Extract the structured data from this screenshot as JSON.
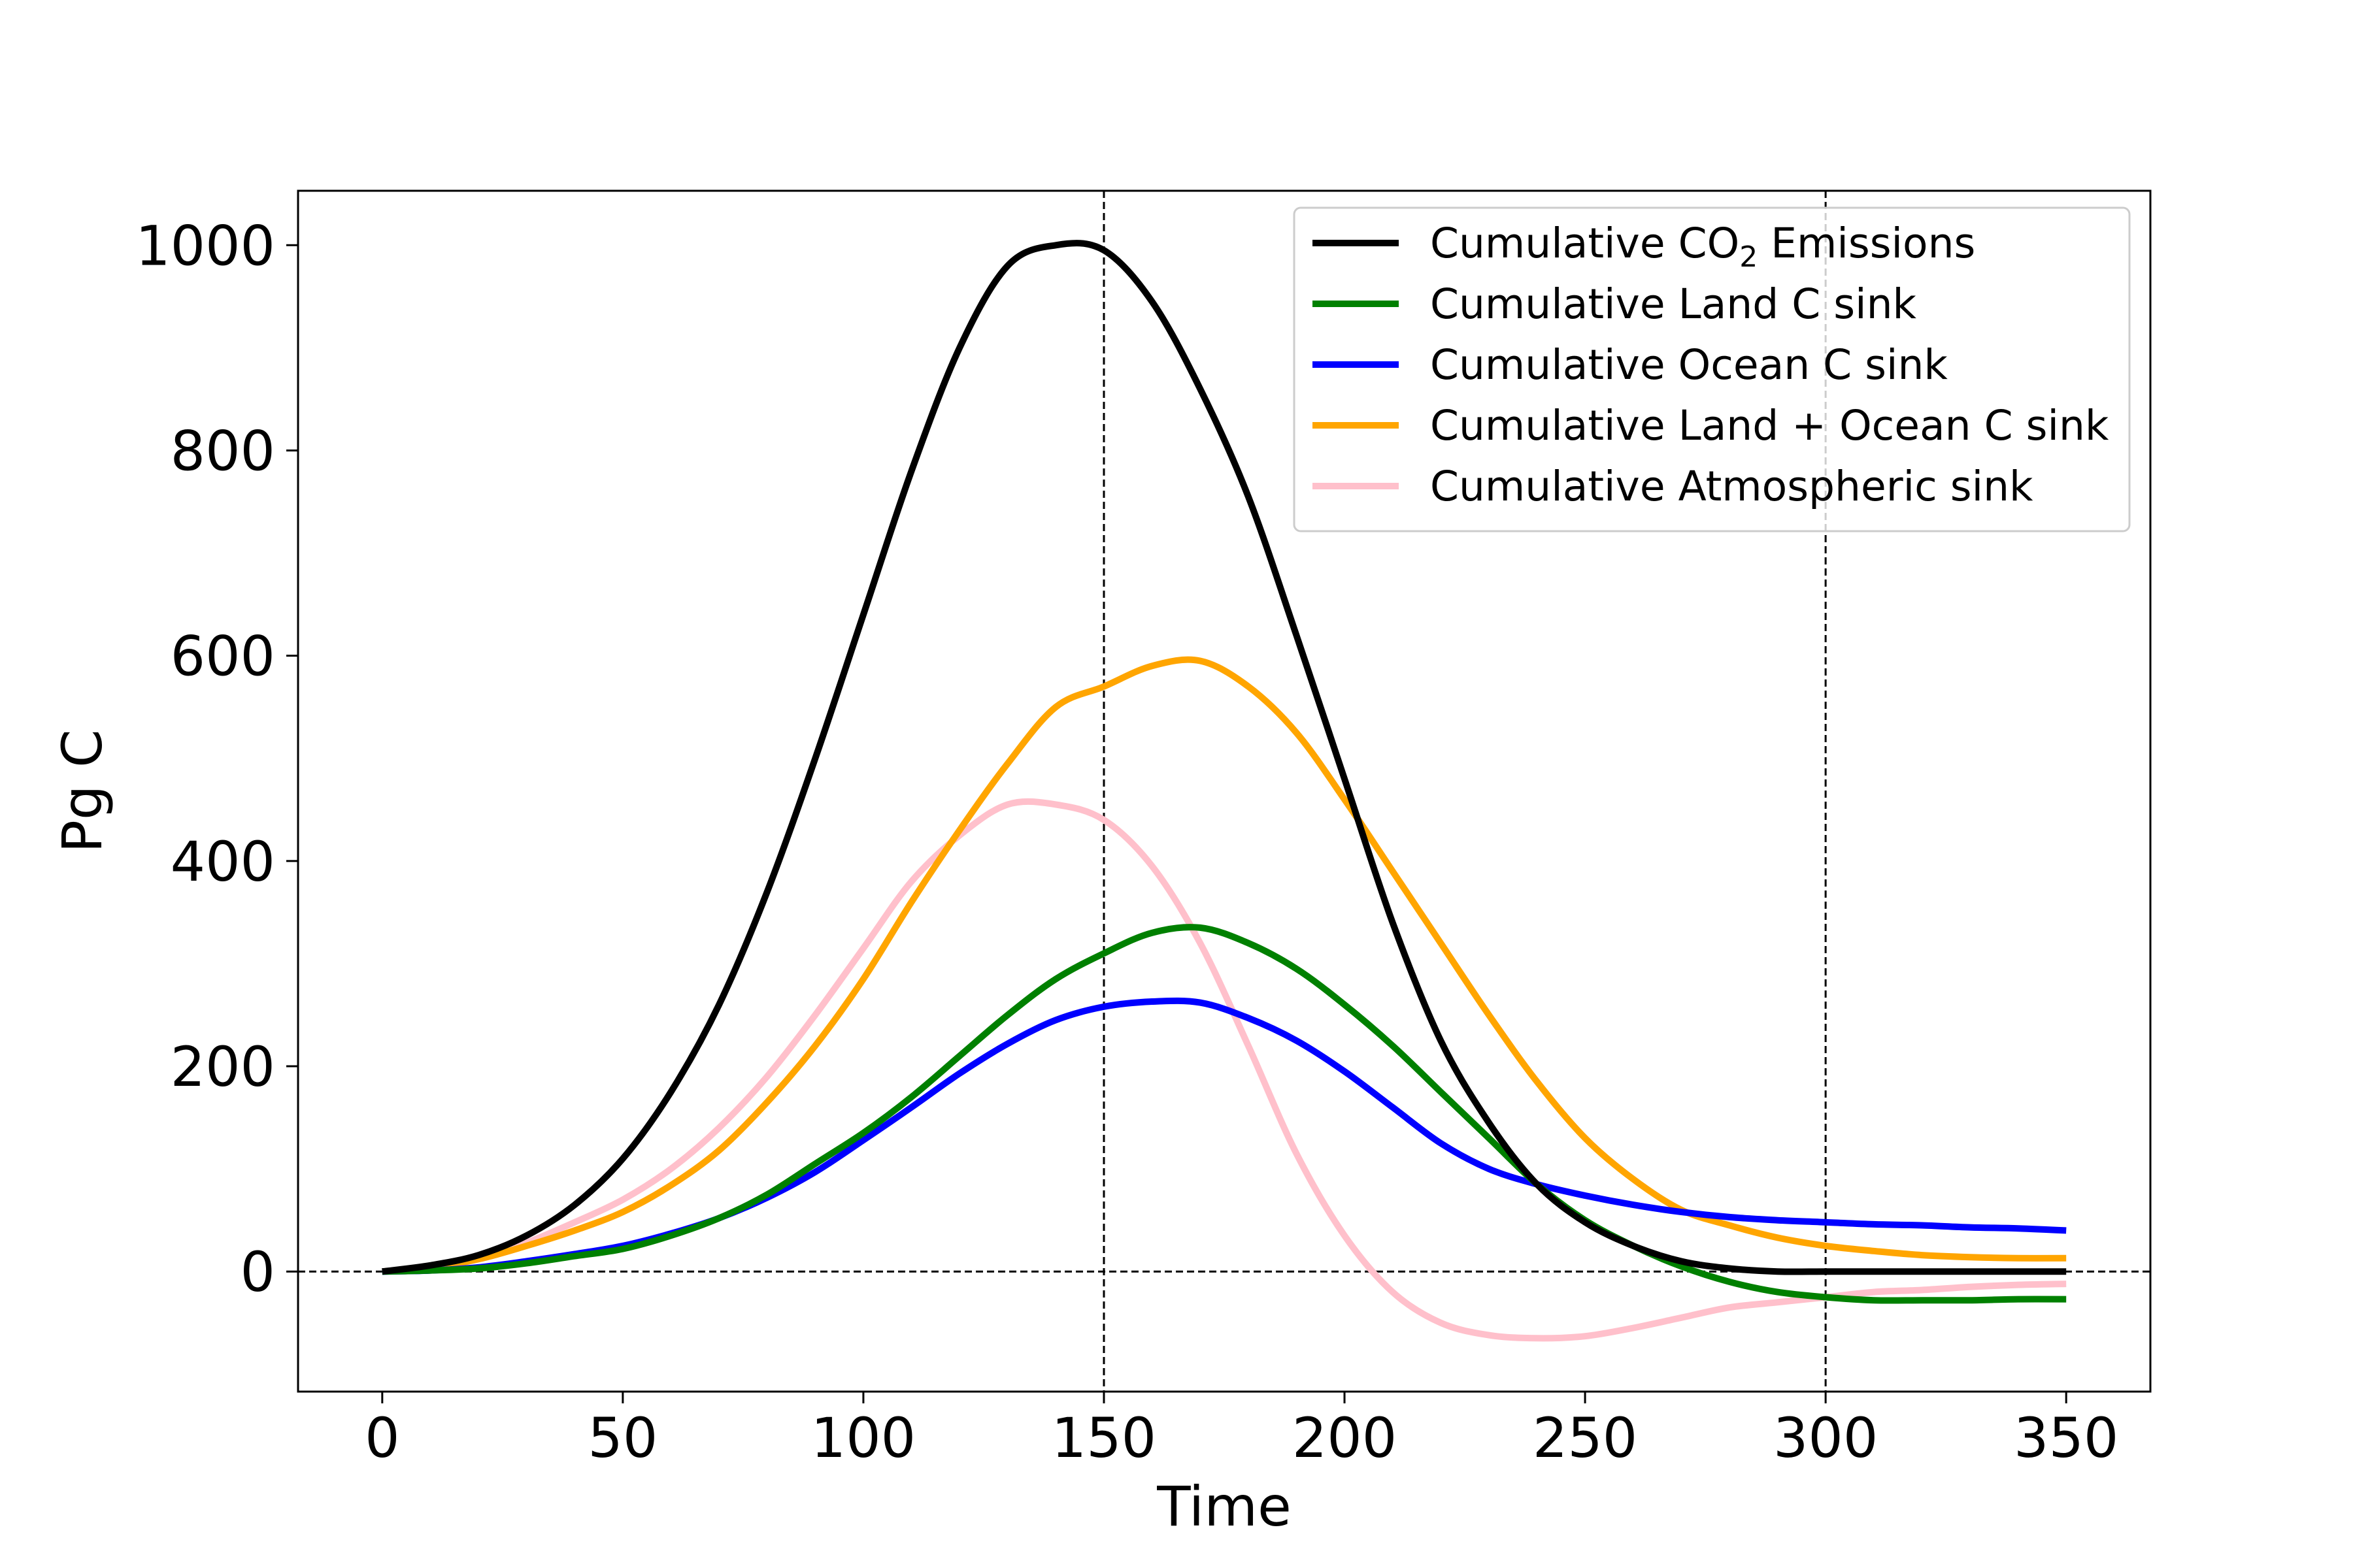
{
  "chart_data": {
    "type": "line",
    "title": "",
    "xlabel": "Time",
    "ylabel": "Pg C",
    "xlim": [
      -17.5,
      367.5
    ],
    "ylim": [
      -117,
      1053
    ],
    "xticks": [
      0,
      50,
      100,
      150,
      200,
      250,
      300,
      350
    ],
    "yticks": [
      0,
      200,
      400,
      600,
      800,
      1000
    ],
    "xtick_labels": [
      "0",
      "50",
      "100",
      "150",
      "200",
      "250",
      "300",
      "350"
    ],
    "ytick_labels": [
      "0",
      "200",
      "400",
      "600",
      "800",
      "1000"
    ],
    "reference_lines": {
      "horizontal": [
        0
      ],
      "vertical": [
        150,
        300
      ],
      "style": "dashed"
    },
    "legend_location": "upper right",
    "grid": false,
    "x": [
      0,
      10,
      20,
      30,
      40,
      50,
      60,
      70,
      80,
      90,
      100,
      110,
      120,
      130,
      140,
      150,
      160,
      170,
      180,
      190,
      200,
      210,
      220,
      230,
      240,
      250,
      260,
      270,
      280,
      290,
      300,
      310,
      320,
      330,
      340,
      350
    ],
    "series": [
      {
        "name": "Cumulative CO2 Emissions",
        "legend_label": {
          "pre": "Cumulative CO",
          "sub": "2",
          "post": " Emissions"
        },
        "color": "#000000",
        "values": [
          0,
          6,
          16,
          35,
          65,
          110,
          175,
          260,
          370,
          500,
          640,
          780,
          900,
          980,
          1000,
          995,
          945,
          860,
          755,
          620,
          480,
          340,
          225,
          145,
          85,
          48,
          25,
          10,
          3,
          0,
          0,
          0,
          0,
          0,
          0,
          0
        ]
      },
      {
        "name": "Cumulative Land C sink",
        "color": "#008000",
        "values": [
          0,
          1,
          3,
          8,
          15,
          22,
          35,
          52,
          75,
          105,
          135,
          170,
          210,
          250,
          285,
          310,
          330,
          335,
          320,
          295,
          260,
          220,
          175,
          130,
          85,
          50,
          25,
          5,
          -10,
          -20,
          -25,
          -28,
          -28,
          -28,
          -27,
          -27
        ]
      },
      {
        "name": "Cumulative Ocean C sink",
        "color": "#0000ff",
        "values": [
          0,
          1,
          4,
          10,
          17,
          25,
          37,
          52,
          72,
          97,
          128,
          160,
          193,
          222,
          245,
          258,
          263,
          262,
          247,
          225,
          195,
          160,
          125,
          100,
          85,
          74,
          65,
          58,
          53,
          50,
          48,
          46,
          45,
          43,
          42,
          40
        ]
      },
      {
        "name": "Cumulative Land + Ocean C sink",
        "color": "#ffa500",
        "values": [
          0,
          4,
          12,
          25,
          40,
          58,
          84,
          118,
          165,
          220,
          285,
          360,
          430,
          495,
          550,
          570,
          590,
          595,
          570,
          525,
          460,
          390,
          320,
          250,
          185,
          130,
          90,
          60,
          45,
          33,
          25,
          20,
          16,
          14,
          13,
          13
        ]
      },
      {
        "name": "Cumulative Atmospheric sink",
        "color": "#ffc0cb",
        "values": [
          0,
          4,
          12,
          28,
          48,
          70,
          100,
          140,
          190,
          250,
          315,
          380,
          425,
          455,
          455,
          440,
          395,
          320,
          220,
          115,
          35,
          -20,
          -50,
          -62,
          -65,
          -63,
          -55,
          -45,
          -35,
          -30,
          -25,
          -20,
          -18,
          -15,
          -13,
          -12
        ]
      }
    ]
  }
}
